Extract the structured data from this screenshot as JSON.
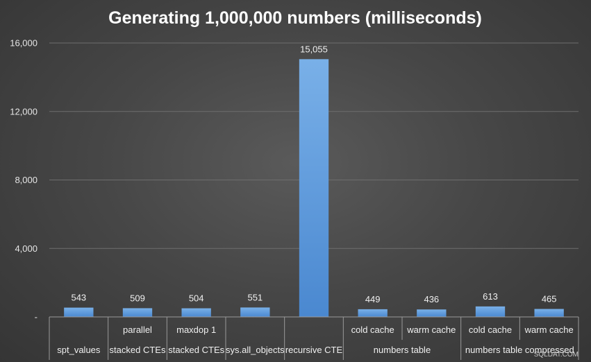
{
  "chart_data": {
    "type": "bar",
    "title": "Generating 1,000,000 numbers (milliseconds)",
    "xlabel": "",
    "ylabel": "",
    "ylim": [
      0,
      16000
    ],
    "ytick_values": [
      0,
      4000,
      8000,
      12000,
      16000
    ],
    "ytick_labels": [
      "-",
      "4,000",
      "8,000",
      "12,000",
      "16,000"
    ],
    "grid": true,
    "legend": "none",
    "categories": [
      {
        "label": "",
        "group": "spt_values"
      },
      {
        "label": "parallel",
        "group": "stacked CTEs"
      },
      {
        "label": "maxdop 1",
        "group": "stacked CTEs"
      },
      {
        "label": "",
        "group": "sys.all_objects"
      },
      {
        "label": "",
        "group": "recursive CTE"
      },
      {
        "label": "cold cache",
        "group": "numbers table"
      },
      {
        "label": "warm cache",
        "group": "numbers table"
      },
      {
        "label": "cold cache",
        "group": "numbers table compressed"
      },
      {
        "label": "warm cache",
        "group": "numbers table compressed"
      }
    ],
    "groups": [
      {
        "name": "spt_values",
        "span": [
          0,
          0
        ]
      },
      {
        "name": "stacked CTEs",
        "span": [
          1,
          1
        ]
      },
      {
        "name": "stacked CTEs",
        "span": [
          2,
          2
        ]
      },
      {
        "name": "sys.all_objects",
        "span": [
          3,
          3
        ]
      },
      {
        "name": "recursive CTE",
        "span": [
          4,
          4
        ]
      },
      {
        "name": "numbers table",
        "span": [
          5,
          6
        ]
      },
      {
        "name": "numbers table compressed",
        "span": [
          7,
          8
        ]
      }
    ],
    "values": [
      543,
      509,
      504,
      551,
      15055,
      449,
      436,
      613,
      465
    ],
    "data_labels": [
      "543",
      "509",
      "504",
      "551",
      "15,055",
      "449",
      "436",
      "613",
      "465"
    ],
    "bar_color": "#5b9bd5"
  },
  "watermark": "SQLDAT.COM"
}
